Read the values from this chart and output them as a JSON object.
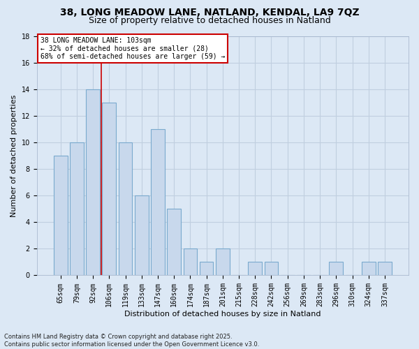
{
  "title1": "38, LONG MEADOW LANE, NATLAND, KENDAL, LA9 7QZ",
  "title2": "Size of property relative to detached houses in Natland",
  "xlabel": "Distribution of detached houses by size in Natland",
  "ylabel": "Number of detached properties",
  "categories": [
    "65sqm",
    "79sqm",
    "92sqm",
    "106sqm",
    "119sqm",
    "133sqm",
    "147sqm",
    "160sqm",
    "174sqm",
    "187sqm",
    "201sqm",
    "215sqm",
    "228sqm",
    "242sqm",
    "256sqm",
    "269sqm",
    "283sqm",
    "296sqm",
    "310sqm",
    "324sqm",
    "337sqm"
  ],
  "values": [
    9,
    10,
    14,
    13,
    10,
    6,
    11,
    5,
    2,
    1,
    2,
    0,
    1,
    1,
    0,
    0,
    0,
    1,
    0,
    1,
    1
  ],
  "bar_color": "#c8d8ec",
  "bar_edge_color": "#7aaace",
  "vline_color": "#cc0000",
  "annotation_title": "38 LONG MEADOW LANE: 103sqm",
  "annotation_line1": "← 32% of detached houses are smaller (28)",
  "annotation_line2": "68% of semi-detached houses are larger (59) →",
  "annotation_box_facecolor": "#ffffff",
  "annotation_box_edgecolor": "#cc0000",
  "ylim": [
    0,
    18
  ],
  "yticks": [
    0,
    2,
    4,
    6,
    8,
    10,
    12,
    14,
    16,
    18
  ],
  "footer": "Contains HM Land Registry data © Crown copyright and database right 2025.\nContains public sector information licensed under the Open Government Licence v3.0.",
  "bg_color": "#dce8f5",
  "plot_bg_color": "#dce8f5",
  "grid_color": "#c0cfe0",
  "title_fontsize": 10,
  "subtitle_fontsize": 9,
  "ylabel_fontsize": 8,
  "xlabel_fontsize": 8,
  "tick_fontsize": 7,
  "footer_fontsize": 6
}
